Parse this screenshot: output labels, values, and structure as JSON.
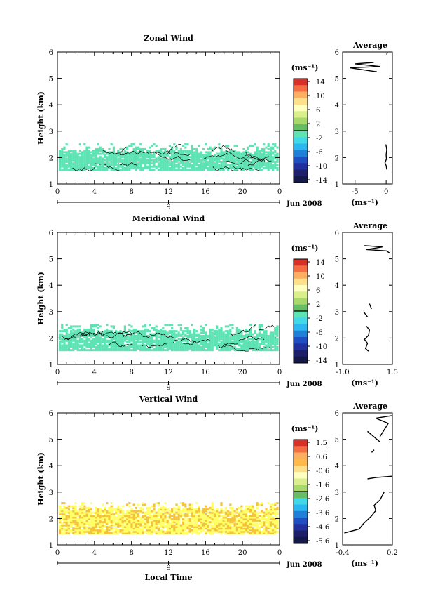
{
  "chart_data": [
    {
      "type": "heatmap",
      "title": "Zonal Wind",
      "ylabel": "Height (km)",
      "x_ticks": [
        "0",
        "4",
        "8",
        "12",
        "16",
        "20",
        "0"
      ],
      "y_ticks": [
        "1",
        "2",
        "3",
        "4",
        "5",
        "6"
      ],
      "xlim": [
        0,
        24
      ],
      "ylim": [
        1,
        6
      ],
      "date_axis": {
        "day": "9",
        "month_year": "Jun 2008"
      },
      "colorbar": {
        "unit": "(ms⁻¹)",
        "tick_labels": [
          "14",
          "10",
          "6",
          "2",
          "-2",
          "-6",
          "-10",
          "-14"
        ],
        "colors": [
          "#d73027",
          "#f46d43",
          "#fdae61",
          "#fee08b",
          "#ffffbf",
          "#d9ef8b",
          "#a6d96a",
          "#66bd63",
          "#5ee3b5",
          "#41d9e8",
          "#2ab7f0",
          "#1f7fd9",
          "#1f4ec2",
          "#21309c",
          "#1d1f6b",
          "#141848"
        ]
      },
      "field": {
        "layer_bottom": 1.5,
        "layer_top": 2.2,
        "dominant_color": "#5ee3b5",
        "intermittent_top": 2.5
      },
      "profile": {
        "title": "Average",
        "xlabel": "(ms⁻¹)",
        "x_ticks": [
          "-5",
          "0"
        ],
        "y_ticks": [
          "1",
          "2",
          "3",
          "4",
          "5",
          "6"
        ],
        "xlim": [
          -7,
          1
        ],
        "ylim": [
          1,
          6
        ],
        "segments": [
          [
            [
              0.1,
              1.55
            ],
            [
              0.0,
              1.7
            ],
            [
              -0.2,
              1.8
            ],
            [
              0.05,
              1.95
            ],
            [
              0.0,
              2.1
            ],
            [
              0.1,
              2.3
            ],
            [
              -0.05,
              2.5
            ]
          ],
          [
            [
              0.1,
              5.9
            ],
            [
              0.2,
              6.0
            ]
          ],
          [
            [
              -1.5,
              5.25
            ],
            [
              -3.0,
              5.3
            ],
            [
              -5.8,
              5.4
            ],
            [
              -1.0,
              5.45
            ],
            [
              -5.0,
              5.55
            ],
            [
              -2.0,
              5.6
            ]
          ]
        ]
      }
    },
    {
      "type": "heatmap",
      "title": "Meridional Wind",
      "ylabel": "Height (km)",
      "x_ticks": [
        "0",
        "4",
        "8",
        "12",
        "16",
        "20",
        "0"
      ],
      "y_ticks": [
        "1",
        "2",
        "3",
        "4",
        "5",
        "6"
      ],
      "xlim": [
        0,
        24
      ],
      "ylim": [
        1,
        6
      ],
      "date_axis": {
        "day": "9",
        "month_year": "Jun 2008"
      },
      "colorbar": {
        "unit": "(ms⁻¹)",
        "tick_labels": [
          "14",
          "10",
          "6",
          "2",
          "-2",
          "-6",
          "-10",
          "-14"
        ],
        "colors": [
          "#d73027",
          "#f46d43",
          "#fdae61",
          "#fee08b",
          "#ffffbf",
          "#d9ef8b",
          "#a6d96a",
          "#66bd63",
          "#5ee3b5",
          "#41d9e8",
          "#2ab7f0",
          "#1f7fd9",
          "#1f4ec2",
          "#21309c",
          "#1d1f6b",
          "#141848"
        ]
      },
      "field": {
        "layer_bottom": 1.5,
        "layer_top": 2.2,
        "dominant_color": "#5ee3b5",
        "intermittent_top": 2.5
      },
      "profile": {
        "title": "Average",
        "xlabel": "(ms⁻¹)",
        "x_ticks": [
          "-1.0",
          "1.5"
        ],
        "y_ticks": [
          "1",
          "2",
          "3",
          "4",
          "5",
          "6"
        ],
        "xlim": [
          -1.0,
          1.5
        ],
        "ylim": [
          1,
          6
        ],
        "segments": [
          [
            [
              0.3,
              1.5
            ],
            [
              0.15,
              1.6
            ],
            [
              0.25,
              1.8
            ],
            [
              0.1,
              1.95
            ],
            [
              0.3,
              2.1
            ],
            [
              0.35,
              2.3
            ],
            [
              0.2,
              2.45
            ]
          ],
          [
            [
              0.25,
              2.8
            ],
            [
              0.05,
              3.0
            ]
          ],
          [
            [
              0.45,
              3.1
            ],
            [
              0.35,
              3.3
            ]
          ],
          [
            [
              1.4,
              5.2
            ],
            [
              1.2,
              5.3
            ],
            [
              0.2,
              5.35
            ],
            [
              1.0,
              5.45
            ],
            [
              0.1,
              5.5
            ]
          ]
        ]
      }
    },
    {
      "type": "heatmap",
      "title": "Vertical Wind",
      "ylabel": "Height (km)",
      "xlabel": "Local Time",
      "x_ticks": [
        "0",
        "4",
        "8",
        "12",
        "16",
        "20",
        "0"
      ],
      "y_ticks": [
        "1",
        "2",
        "3",
        "4",
        "5",
        "6"
      ],
      "xlim": [
        0,
        24
      ],
      "ylim": [
        1,
        6
      ],
      "date_axis": {
        "day": "9",
        "month_year": "Jun 2008"
      },
      "colorbar": {
        "unit": "(ms⁻¹)",
        "tick_labels": [
          "1.5",
          "0.6",
          "-0.6",
          "-1.6",
          "-2.6",
          "-3.6",
          "-4.6",
          "-5.6"
        ],
        "colors": [
          "#d73027",
          "#f46d43",
          "#fdae61",
          "#fdb94a",
          "#fee08b",
          "#ffffbf",
          "#d9ef8b",
          "#a6d96a",
          "#66bd63",
          "#41d9e8",
          "#2ab7f0",
          "#1f7fd9",
          "#1f4ec2",
          "#21309c",
          "#1d1f6b",
          "#141848"
        ]
      },
      "field": {
        "layer_bottom": 1.4,
        "layer_top": 2.3,
        "dominant_color": "#ffff66",
        "secondary_color": "#f5c33b",
        "intermittent_top": 2.6
      },
      "profile": {
        "title": "Average",
        "xlabel": "(ms⁻¹)",
        "x_ticks": [
          "-0.4",
          "0.2"
        ],
        "y_ticks": [
          "1",
          "2",
          "3",
          "4",
          "5",
          "6"
        ],
        "xlim": [
          -0.4,
          0.2
        ],
        "ylim": [
          1,
          6
        ],
        "segments": [
          [
            [
              -0.38,
              1.45
            ],
            [
              -0.2,
              1.6
            ],
            [
              -0.15,
              1.8
            ],
            [
              -0.1,
              1.95
            ],
            [
              -0.05,
              2.1
            ],
            [
              0.0,
              2.3
            ],
            [
              -0.02,
              2.5
            ],
            [
              0.05,
              2.7
            ],
            [
              0.1,
              3.0
            ]
          ],
          [
            [
              -0.1,
              3.5
            ],
            [
              0.0,
              3.55
            ],
            [
              0.2,
              3.6
            ]
          ],
          [
            [
              -0.05,
              4.5
            ],
            [
              -0.02,
              4.6
            ]
          ],
          [
            [
              0.05,
              4.9
            ],
            [
              -0.1,
              5.3
            ]
          ],
          [
            [
              0.05,
              5.1
            ],
            [
              0.15,
              5.6
            ],
            [
              0.0,
              5.8
            ],
            [
              0.2,
              5.9
            ]
          ]
        ]
      }
    }
  ]
}
